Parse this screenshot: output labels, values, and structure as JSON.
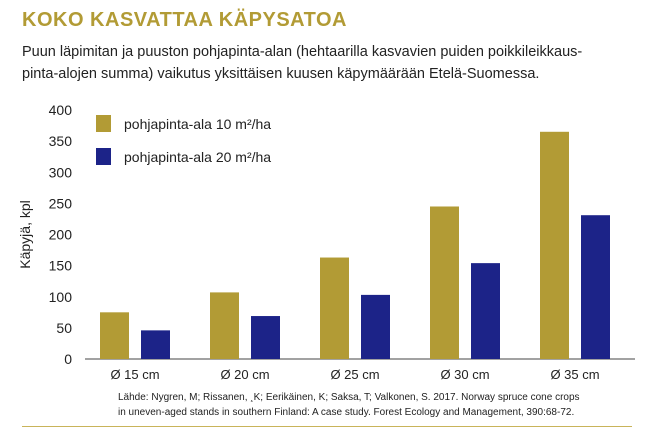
{
  "title": "KOKO KASVATTAA KÄPYSATOA",
  "subtitle_lines": [
    "Puun läpimitan ja puuston pohjapinta-alan (hehtaarilla kasvavien puiden poikkileikkaus-",
    "pinta-alojen summa) vaikutus yksittäisen kuusen käpymäärään Etelä-Suomessa."
  ],
  "source_lines": [
    "Lähde: Nygren, M; Rissanen, ¸K; Eerikäinen, K; Saksa, T; Valkonen, S. 2017. Norway spruce cone crops",
    "in uneven-aged stands in southern Finland: A case study. Forest Ecology and Management, 390:68-72."
  ],
  "colors": {
    "title": "#b29b35",
    "series1": "#b29b35",
    "series2": "#1c2388",
    "rule": "#c9b45a"
  },
  "chart_data": {
    "type": "bar",
    "ylabel": "Käpyjä, kpl",
    "xlabel": "",
    "ylim": [
      0,
      400
    ],
    "yticks": [
      0,
      50,
      100,
      150,
      200,
      250,
      300,
      350,
      400
    ],
    "grid": false,
    "legend_position": "top-left",
    "categories": [
      "Ø 15 cm",
      "Ø 20 cm",
      "Ø 25 cm",
      "Ø 30 cm",
      "Ø 35 cm"
    ],
    "series": [
      {
        "name": "pohjapinta-ala 10 m²/ha",
        "color": "#b29b35",
        "values": [
          75,
          107,
          163,
          245,
          365
        ]
      },
      {
        "name": "pohjapinta-ala 20 m²/ha",
        "color": "#1c2388",
        "values": [
          46,
          69,
          103,
          154,
          231
        ]
      }
    ]
  }
}
